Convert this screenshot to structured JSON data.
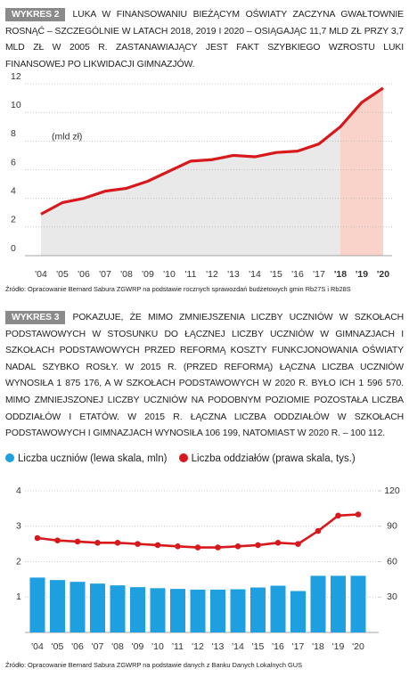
{
  "chart_data": [
    {
      "type": "area-line",
      "label": "WYKRES 2",
      "title": "LUKA W FINANSOWANIU BIEŻĄCYM OŚWIATY ZACZYNA GWAŁTOWNIE ROSNĄĆ – SZCZEGÓLNIE W LATACH 2018, 2019 I 2020 – OSIĄGAJĄC 11,7 MLD ZŁ PRZY 3,7 MLD ZŁ W 2005 R. ZASTANAWIAJĄCY JEST FAKT SZYBKIEGO WZROSTU LUKI FINANSOWEJ PO LIKWIDACJI GIMNAZJÓW.",
      "y_label": "(mld zł)",
      "categories": [
        "'04",
        "'05",
        "'06",
        "'07",
        "'08",
        "'09",
        "'10",
        "'11",
        "'12",
        "'13",
        "'14",
        "'15",
        "'16",
        "'17",
        "'18",
        "'19",
        "'20"
      ],
      "values": [
        2.9,
        3.7,
        4.0,
        4.5,
        4.7,
        5.2,
        5.9,
        6.6,
        6.7,
        7.0,
        6.9,
        7.2,
        7.3,
        7.8,
        9.0,
        10.7,
        11.7
      ],
      "color": "#d7191c",
      "area_color": "#e9e9e9",
      "highlight_color": "#f9d3c9",
      "highlight_from_index": 14,
      "ylim": [
        0,
        12
      ],
      "yticks": [
        0,
        2,
        4,
        6,
        8,
        10,
        12
      ],
      "grid": true,
      "source": "Źródło: Opracowanie Bernard Sabura ZGWRP na podstawie rocznych sprawozdań budżetowych gmin Rb27S i Rb28S"
    },
    {
      "type": "bar-line",
      "label": "WYKRES 3",
      "title": "POKAZUJE, ŻE MIMO ZMNIEJSZENIA LICZBY UCZNIÓW W SZKOŁACH PODSTAWOWYCH W STOSUNKU DO ŁĄCZNEJ LICZBY UCZNIÓW W GIMNAZJACH I SZKOŁACH PODSTAWOWYCH PRZED REFORMĄ KOSZTY FUNKCJONOWANIA OŚWIATY NADAL SZYBKO ROSŁY. W 2015 R. (PRZED REFORMĄ) ŁĄCZNA LICZBA UCZNIÓW WYNOSIŁA 1 875 176, A W SZKOŁACH PODSTAWOWYCH W 2020 R. BYŁO ICH 1 596 570. MIMO ZMNIEJSZONEJ LICZBY UCZNIÓW NA PODOBNYM POZIOMIE POZOSTAŁA LICZBA ODDZIAŁÓW I ETATÓW. W 2015 R. ŁĄCZNA LICZBA ODDZIAŁÓW W SZKOŁACH PODSTAWOWYCH I GIMNAZJACH WYNOSIŁA 106 199, NATOMIAST W 2020 R. – 100 112.",
      "categories": [
        "'04",
        "'05",
        "'06",
        "'07",
        "'08",
        "'09",
        "'10",
        "'11",
        "'12",
        "'13",
        "'14",
        "'15",
        "'16",
        "'17",
        "'18",
        "'19",
        "'20"
      ],
      "series": [
        {
          "name": "Liczba uczniów (lewa skala, mln)",
          "color": "#1e9fe0",
          "kind": "bar",
          "values": [
            1.55,
            1.48,
            1.43,
            1.38,
            1.33,
            1.28,
            1.25,
            1.23,
            1.21,
            1.21,
            1.22,
            1.27,
            1.32,
            1.17,
            1.6,
            1.6,
            1.6
          ]
        },
        {
          "name": "Liczba oddziałów (prawa skala, tys.)",
          "color": "#d7191c",
          "kind": "line",
          "axis": "y2",
          "values": [
            80,
            78,
            77,
            76,
            76,
            75,
            74,
            73,
            72,
            72,
            73,
            74,
            76,
            75,
            86,
            99,
            100
          ]
        }
      ],
      "ylim": [
        0,
        4
      ],
      "yticks": [
        1,
        2,
        3,
        4
      ],
      "y2lim": [
        0,
        120
      ],
      "y2ticks": [
        30,
        60,
        90,
        120
      ],
      "grid": true,
      "source": "Źródło: Opracowanie Bernard Sabura ZGWRP na podstawie danych z Banku Danych Lokalnych GUS"
    }
  ]
}
